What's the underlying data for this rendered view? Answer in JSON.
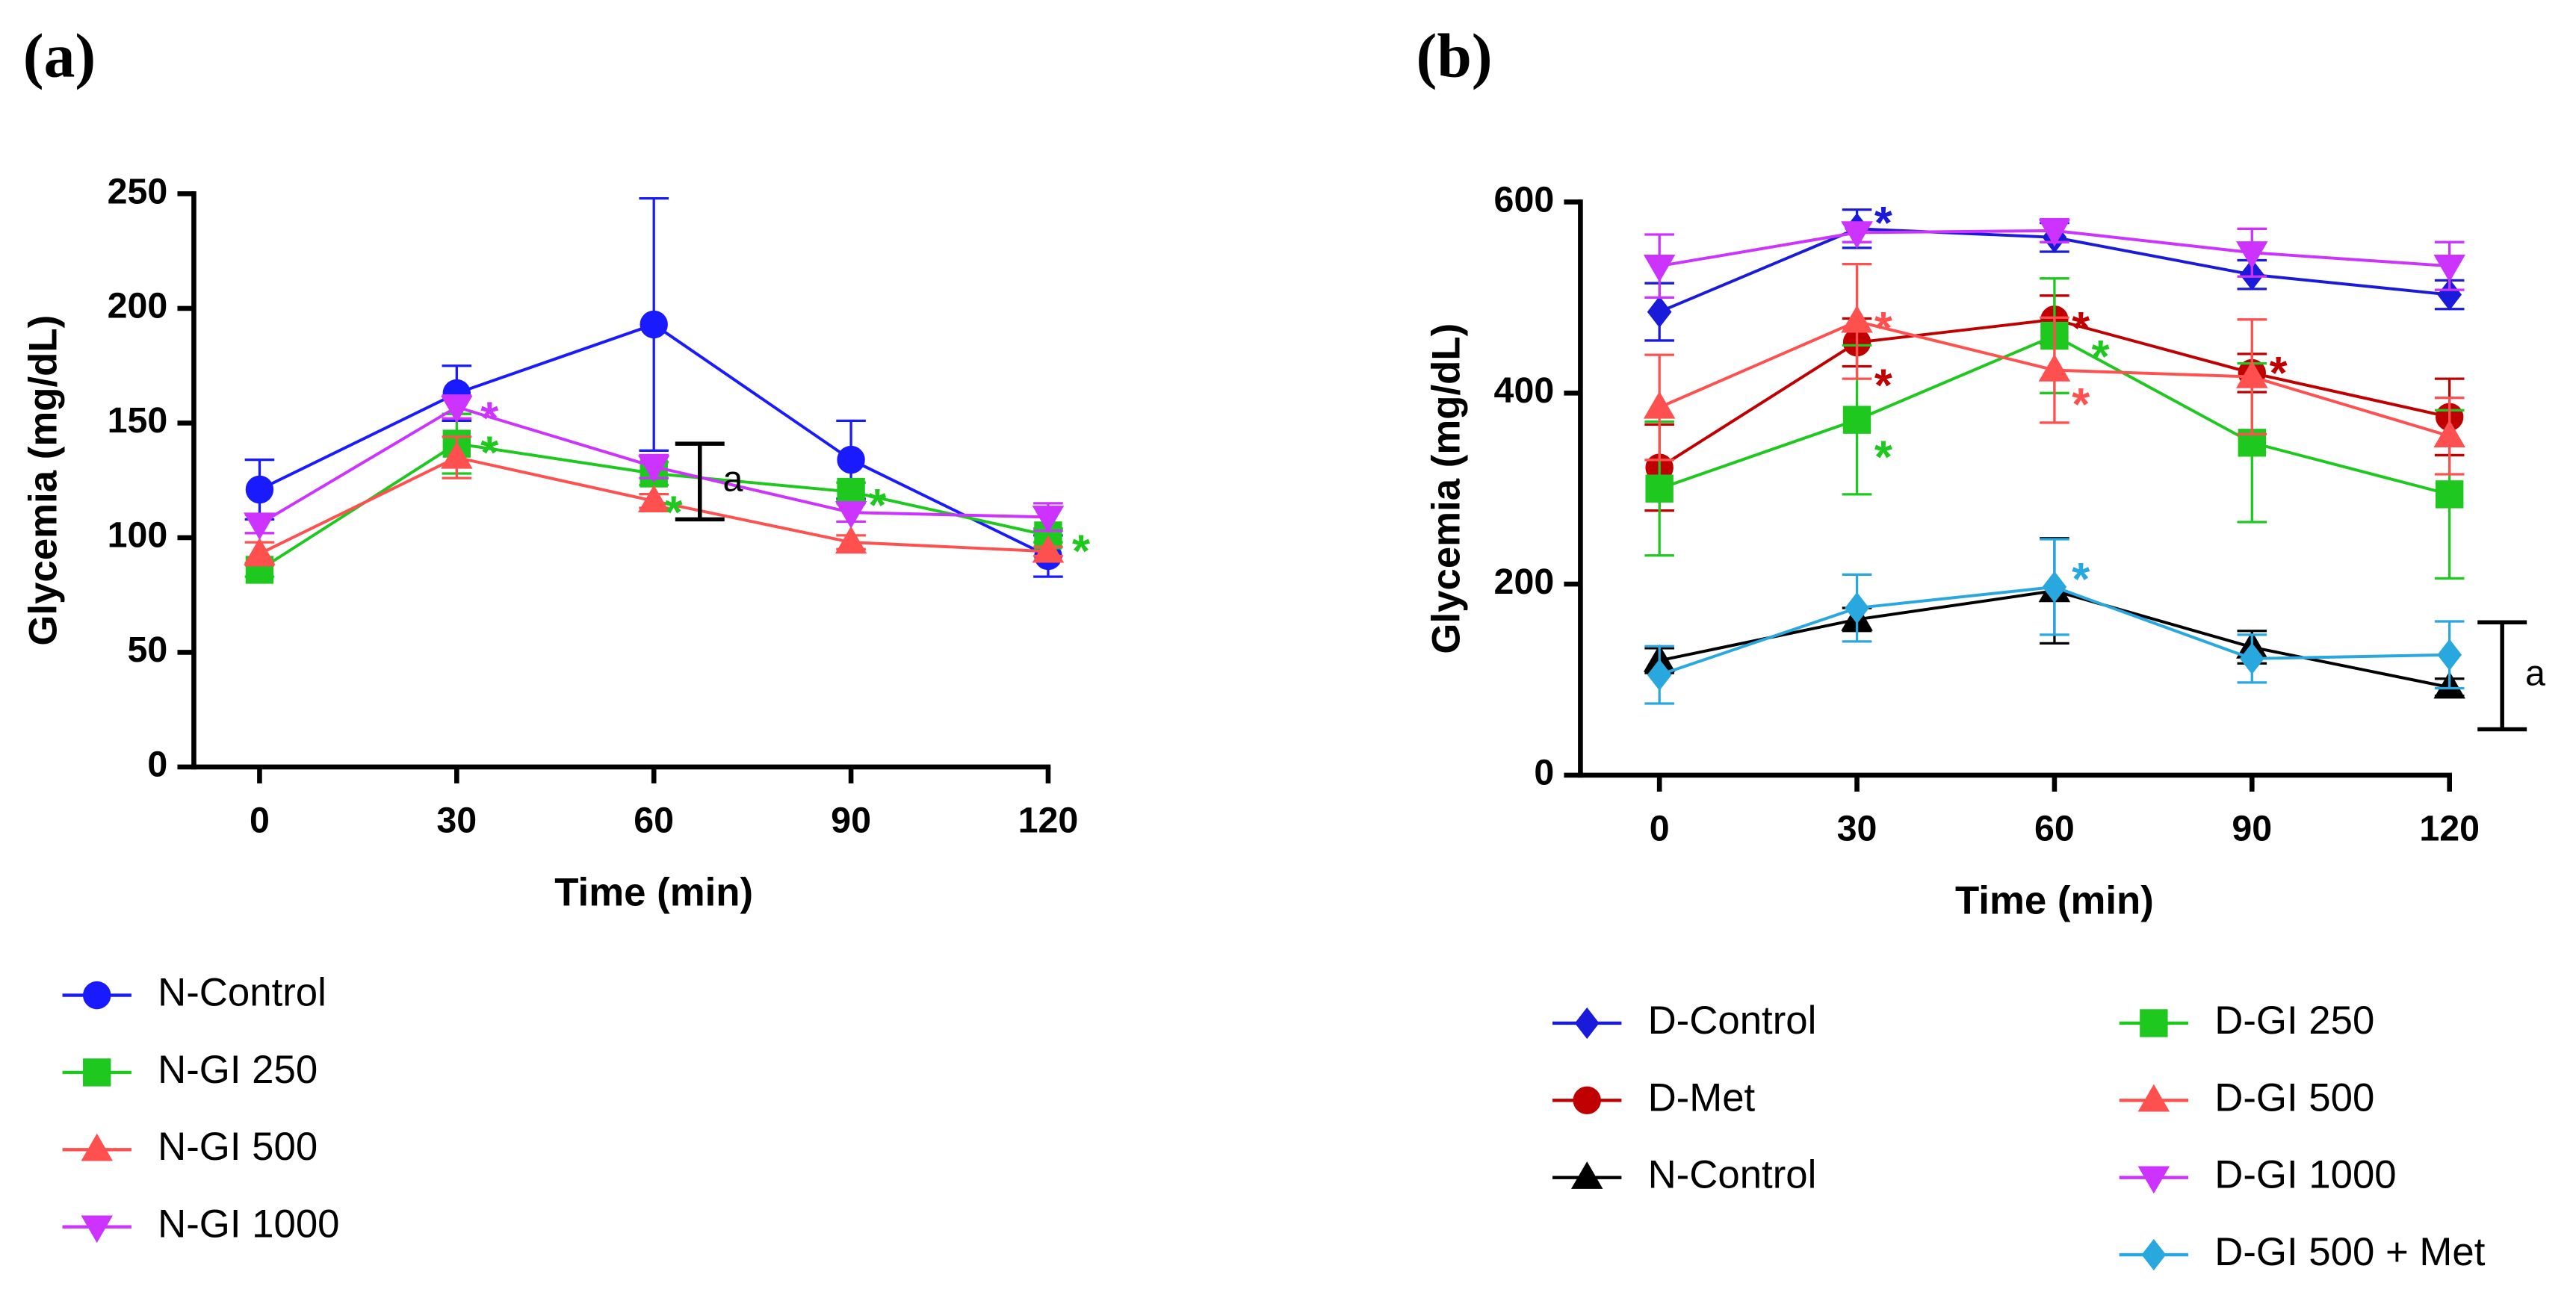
{
  "chart_data": [
    {
      "type": "line",
      "label": "(a)",
      "x_label": "Time (min)",
      "y_label": "Glycemia (mg/dL)",
      "x": [
        0,
        30,
        60,
        90,
        120
      ],
      "xlim": [
        -10,
        120
      ],
      "xticks": [
        0,
        30,
        60,
        90,
        120
      ],
      "ylim": [
        0,
        250
      ],
      "yticks": [
        0,
        50,
        100,
        150,
        200,
        250
      ],
      "series": [
        {
          "name": "N-Control",
          "color": "#1a1aff",
          "marker": "circle",
          "values": [
            121,
            163,
            193,
            134,
            92
          ],
          "errors": [
            13,
            12,
            55,
            17,
            9
          ]
        },
        {
          "name": "N-GI 250",
          "color": "#1ec81e",
          "marker": "square",
          "values": [
            86,
            141,
            128,
            120,
            101
          ],
          "errors": [
            3,
            13,
            5,
            4,
            3
          ]
        },
        {
          "name": "N-GI 500",
          "color": "#ff5050",
          "marker": "triangle",
          "values": [
            93,
            135,
            116,
            98,
            94
          ],
          "errors": [
            5,
            9,
            3,
            3,
            2
          ]
        },
        {
          "name": "N-GI 1000",
          "color": "#cc33ff",
          "marker": "triangle-down",
          "values": [
            106,
            157,
            131,
            111,
            109
          ],
          "errors": [
            4,
            5,
            5,
            4,
            6
          ]
        }
      ],
      "annotations": [
        {
          "text": "*",
          "x": 35,
          "y": 155,
          "color": "#cc33ff"
        },
        {
          "text": "*",
          "x": 35,
          "y": 140,
          "color": "#1ec81e"
        },
        {
          "text": "*",
          "x": 63,
          "y": 114,
          "color": "#1ec81e"
        },
        {
          "text": "*",
          "x": 94,
          "y": 117,
          "color": "#1ec81e"
        },
        {
          "text": "*",
          "x": 125,
          "y": 97,
          "color": "#1ec81e"
        }
      ],
      "bracket": {
        "text": "a",
        "x": 67,
        "range": [
          108,
          141
        ]
      }
    },
    {
      "type": "line",
      "label": "(b)",
      "x_label": "Time (min)",
      "y_label": "Glycemia (mg/dL)",
      "x": [
        0,
        30,
        60,
        90,
        120
      ],
      "xlim": [
        -12,
        120
      ],
      "xticks": [
        0,
        30,
        60,
        90,
        120
      ],
      "ylim": [
        0,
        600
      ],
      "yticks": [
        0,
        200,
        400,
        600
      ],
      "series": [
        {
          "name": "D-Control",
          "color": "#1a1adb",
          "marker": "diamond",
          "values": [
            485,
            572,
            563,
            524,
            503
          ],
          "errors": [
            30,
            20,
            15,
            15,
            15
          ]
        },
        {
          "name": "D-Met",
          "color": "#c00000",
          "marker": "circle",
          "values": [
            322,
            453,
            477,
            421,
            375
          ],
          "errors": [
            45,
            25,
            25,
            20,
            40
          ]
        },
        {
          "name": "N-Control",
          "color": "#000000",
          "marker": "triangle",
          "values": [
            120,
            163,
            193,
            134,
            92
          ],
          "errors": [
            13,
            12,
            55,
            17,
            9
          ]
        },
        {
          "name": "D-GI 250",
          "color": "#1ec81e",
          "marker": "square",
          "values": [
            300,
            372,
            460,
            348,
            294
          ],
          "errors": [
            70,
            78,
            60,
            83,
            88
          ]
        },
        {
          "name": "D-GI 500",
          "color": "#ff5050",
          "marker": "triangle",
          "values": [
            385,
            475,
            424,
            417,
            355
          ],
          "errors": [
            55,
            60,
            55,
            60,
            40
          ]
        },
        {
          "name": "D-GI 1000",
          "color": "#cc33ff",
          "marker": "triangle-down",
          "values": [
            533,
            568,
            570,
            547,
            533
          ],
          "errors": [
            33,
            10,
            12,
            25,
            25
          ]
        },
        {
          "name": "D-GI 500 + Met",
          "color": "#29a8e0",
          "marker": "diamond",
          "values": [
            105,
            175,
            197,
            122,
            126
          ],
          "errors": [
            30,
            35,
            50,
            25,
            35
          ]
        }
      ],
      "annotations": [
        {
          "text": "*",
          "x": 34,
          "y": 585,
          "color": "#1a1adb"
        },
        {
          "text": "*",
          "x": 34,
          "y": 475,
          "color": "#ff5050"
        },
        {
          "text": "*",
          "x": 34,
          "y": 415,
          "color": "#c00000"
        },
        {
          "text": "*",
          "x": 34,
          "y": 340,
          "color": "#1ec81e"
        },
        {
          "text": "*",
          "x": 64,
          "y": 475,
          "color": "#c00000"
        },
        {
          "text": "*",
          "x": 67,
          "y": 445,
          "color": "#1ec81e"
        },
        {
          "text": "*",
          "x": 64,
          "y": 395,
          "color": "#ff5050"
        },
        {
          "text": "*",
          "x": 94,
          "y": 428,
          "color": "#c00000"
        },
        {
          "text": "*",
          "x": 64,
          "y": 212,
          "color": "#29a8e0"
        }
      ],
      "bracket": {
        "text": "a",
        "x": 128,
        "range": [
          48,
          160
        ]
      }
    }
  ]
}
